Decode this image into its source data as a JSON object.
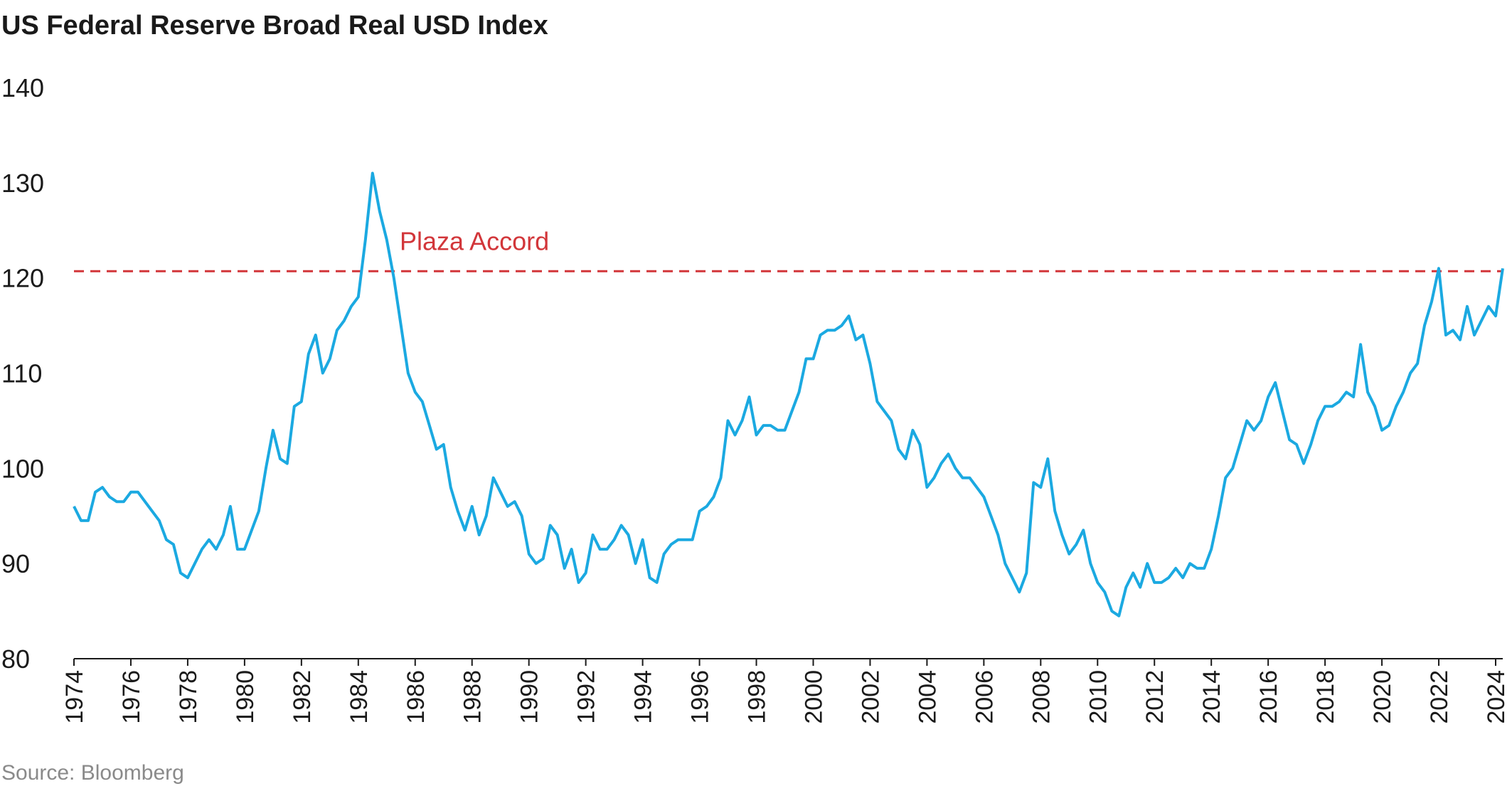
{
  "chart_data": {
    "type": "line",
    "title": "US Federal Reserve Broad Real USD Index",
    "source": "Source: Bloomberg",
    "x": [
      1974.0,
      1974.25,
      1974.5,
      1974.75,
      1975.0,
      1975.25,
      1975.5,
      1975.75,
      1976.0,
      1976.25,
      1976.5,
      1976.75,
      1977.0,
      1977.25,
      1977.5,
      1977.75,
      1978.0,
      1978.25,
      1978.5,
      1978.75,
      1979.0,
      1979.25,
      1979.5,
      1979.75,
      1980.0,
      1980.25,
      1980.5,
      1980.75,
      1981.0,
      1981.25,
      1981.5,
      1981.75,
      1982.0,
      1982.25,
      1982.5,
      1982.75,
      1983.0,
      1983.25,
      1983.5,
      1983.75,
      1984.0,
      1984.25,
      1984.5,
      1984.75,
      1985.0,
      1985.25,
      1985.5,
      1985.75,
      1986.0,
      1986.25,
      1986.5,
      1986.75,
      1987.0,
      1987.25,
      1987.5,
      1987.75,
      1988.0,
      1988.25,
      1988.5,
      1988.75,
      1989.0,
      1989.25,
      1989.5,
      1989.75,
      1990.0,
      1990.25,
      1990.5,
      1990.75,
      1991.0,
      1991.25,
      1991.5,
      1991.75,
      1992.0,
      1992.25,
      1992.5,
      1992.75,
      1993.0,
      1993.25,
      1993.5,
      1993.75,
      1994.0,
      1994.25,
      1994.5,
      1994.75,
      1995.0,
      1995.25,
      1995.5,
      1995.75,
      1996.0,
      1996.25,
      1996.5,
      1996.75,
      1997.0,
      1997.25,
      1997.5,
      1997.75,
      1998.0,
      1998.25,
      1998.5,
      1998.75,
      1999.0,
      1999.25,
      1999.5,
      1999.75,
      2000.0,
      2000.25,
      2000.5,
      2000.75,
      2001.0,
      2001.25,
      2001.5,
      2001.75,
      2002.0,
      2002.25,
      2002.5,
      2002.75,
      2003.0,
      2003.25,
      2003.5,
      2003.75,
      2004.0,
      2004.25,
      2004.5,
      2004.75,
      2005.0,
      2005.25,
      2005.5,
      2005.75,
      2006.0,
      2006.25,
      2006.5,
      2006.75,
      2007.0,
      2007.25,
      2007.5,
      2007.75,
      2008.0,
      2008.25,
      2008.5,
      2008.75,
      2009.0,
      2009.25,
      2009.5,
      2009.75,
      2010.0,
      2010.25,
      2010.5,
      2010.75,
      2011.0,
      2011.25,
      2011.5,
      2011.75,
      2012.0,
      2012.25,
      2012.5,
      2012.75,
      2013.0,
      2013.25,
      2013.5,
      2013.75,
      2014.0,
      2014.25,
      2014.5,
      2014.75,
      2015.0,
      2015.25,
      2015.5,
      2015.75,
      2016.0,
      2016.25,
      2016.5,
      2016.75,
      2017.0,
      2017.25,
      2017.5,
      2017.75,
      2018.0,
      2018.25,
      2018.5,
      2018.75,
      2019.0,
      2019.25,
      2019.5,
      2019.75,
      2020.0,
      2020.25,
      2020.5,
      2020.75,
      2021.0,
      2021.25,
      2021.5,
      2021.75,
      2022.0,
      2022.25,
      2022.5,
      2022.75,
      2023.0,
      2023.25,
      2023.5,
      2023.75,
      2024.0,
      2024.25
    ],
    "series": [
      {
        "name": "Broad Real USD Index",
        "color": "#1ba9e1",
        "values": [
          96,
          94.5,
          94.5,
          97.5,
          98,
          97,
          96.5,
          96.5,
          97.5,
          97.5,
          96.5,
          95.5,
          94.5,
          92.5,
          92,
          89,
          88.5,
          90,
          91.5,
          92.5,
          91.5,
          93,
          96,
          91.5,
          91.5,
          93.5,
          95.5,
          100,
          104,
          101,
          100.5,
          106.5,
          107,
          112,
          114,
          110,
          111.5,
          114.5,
          115.5,
          117,
          118,
          124,
          131,
          127,
          124,
          120,
          115,
          110,
          108,
          107,
          104.5,
          102,
          102.5,
          98,
          95.5,
          93.5,
          96,
          93,
          95,
          99,
          97.5,
          96,
          96.5,
          95,
          91,
          90,
          90.5,
          94,
          93,
          89.5,
          91.5,
          88,
          89,
          93,
          91.5,
          91.5,
          92.5,
          94,
          93,
          90,
          92.5,
          88.5,
          88,
          91,
          92,
          92.5,
          92.5,
          92.5,
          95.5,
          96,
          97,
          99,
          105,
          103.5,
          105,
          107.5,
          103.5,
          104.5,
          104.5,
          104,
          104,
          106,
          108,
          111.5,
          111.5,
          114,
          114.5,
          114.5,
          115,
          116,
          113.5,
          114,
          111,
          107,
          106,
          105,
          102,
          101,
          104,
          102.5,
          98,
          99,
          100.5,
          101.5,
          100,
          99,
          99,
          98,
          97,
          95,
          93,
          90,
          88.5,
          87,
          89,
          98.5,
          98,
          101,
          95.5,
          93,
          91,
          92,
          93.5,
          90,
          88,
          87,
          85,
          84.5,
          87.5,
          89,
          87.5,
          90,
          88,
          88,
          88.5,
          89.5,
          88.5,
          90,
          89.5,
          89.5,
          91.5,
          95,
          99,
          100,
          102.5,
          105,
          104,
          105,
          107.5,
          109,
          106,
          103,
          102.5,
          100.5,
          102.5,
          105,
          106.5,
          106.5,
          107,
          108,
          107.5,
          113,
          108,
          106.5,
          104,
          104.5,
          106.5,
          108,
          110,
          111,
          115,
          117.5,
          121,
          114,
          114.5,
          113.5,
          117,
          114,
          115.5,
          117,
          116,
          121
        ]
      }
    ],
    "xlim": [
      1974,
      2024.25
    ],
    "xticks": [
      1974,
      1976,
      1978,
      1980,
      1982,
      1984,
      1986,
      1988,
      1990,
      1992,
      1994,
      1996,
      1998,
      2000,
      2002,
      2004,
      2006,
      2008,
      2010,
      2012,
      2014,
      2016,
      2018,
      2020,
      2022,
      2024
    ],
    "ylim": [
      80,
      140
    ],
    "yticks": [
      80,
      90,
      100,
      110,
      120,
      130,
      140
    ],
    "reference_line": {
      "value": 120.7,
      "label": "Plaza Accord",
      "color": "#d2363a"
    }
  }
}
